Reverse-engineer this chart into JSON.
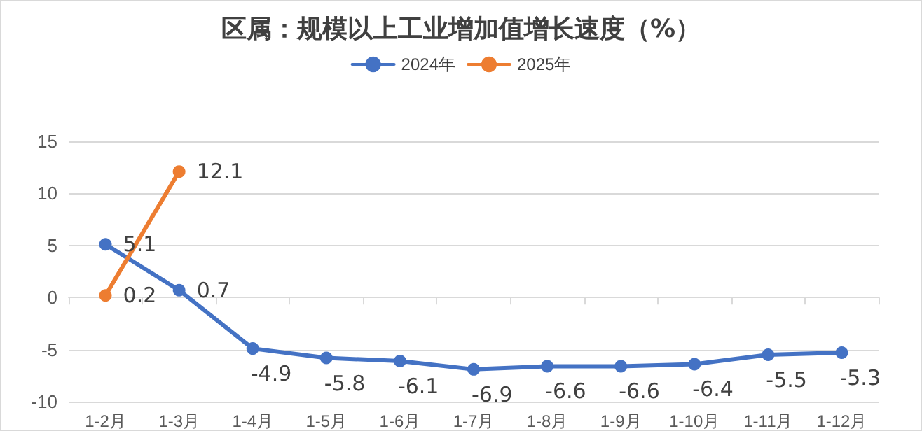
{
  "chart_data": {
    "type": "line",
    "title": "区属：规模以上工业增加值增长速度（%）",
    "categories": [
      "1-2月",
      "1-3月",
      "1-4月",
      "1-5月",
      "1-6月",
      "1-7月",
      "1-8月",
      "1-9月",
      "1-10月",
      "1-11月",
      "1-12月"
    ],
    "series": [
      {
        "name": "2024年",
        "color": "#4472c4",
        "values": [
          5.1,
          0.7,
          -4.9,
          -5.8,
          -6.1,
          -6.9,
          -6.6,
          -6.6,
          -6.4,
          -5.5,
          -5.3
        ]
      },
      {
        "name": "2025年",
        "color": "#ed7d31",
        "values": [
          0.2,
          12.1,
          null,
          null,
          null,
          null,
          null,
          null,
          null,
          null,
          null
        ]
      }
    ],
    "ylim": [
      -10,
      15
    ],
    "yticks": [
      -10,
      -5,
      0,
      5,
      10,
      15
    ],
    "grid": "y",
    "legend": "top",
    "marker": "circle",
    "data_labels": true
  }
}
